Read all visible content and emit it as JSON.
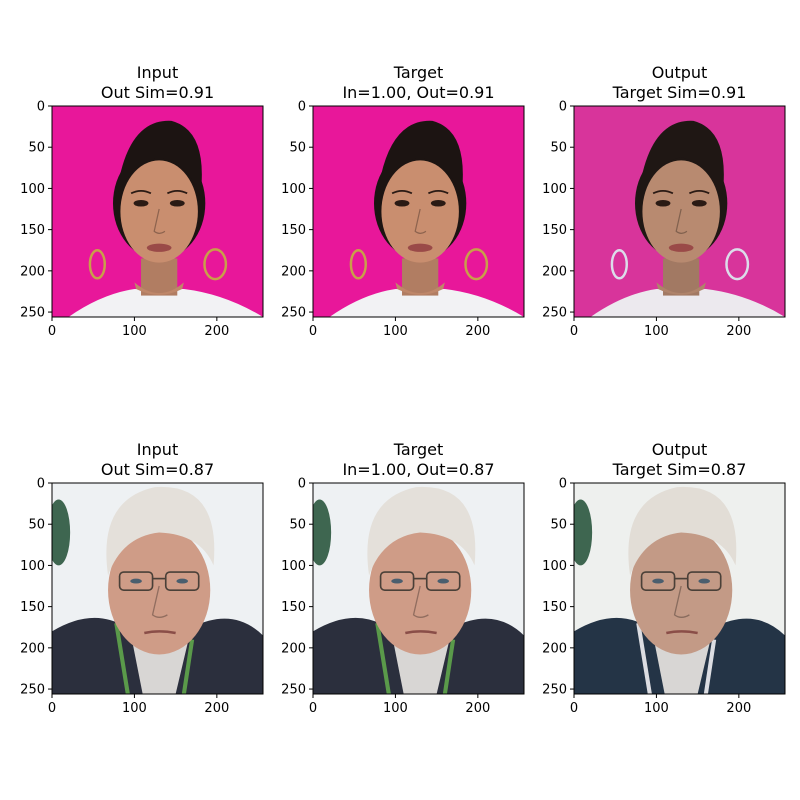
{
  "chart_data": [
    {
      "type": "image",
      "title_line1": "Input",
      "title_line2": "Out Sim=0.91",
      "xlim": [
        0,
        256
      ],
      "ylim": [
        256,
        0
      ],
      "xticks": [
        0,
        100,
        200
      ],
      "yticks": [
        0,
        50,
        100,
        150,
        200,
        250
      ],
      "image": {
        "subject": "woman-short-dark-hair",
        "background": "#e8179a",
        "skin": "#c98e6f",
        "hair": "#1c1412",
        "clothing": "#f2f2f4",
        "accent": "#c8a049"
      }
    },
    {
      "type": "image",
      "title_line1": "Target",
      "title_line2": "In=1.00, Out=0.91",
      "xlim": [
        0,
        256
      ],
      "ylim": [
        256,
        0
      ],
      "xticks": [
        0,
        100,
        200
      ],
      "yticks": [
        0,
        50,
        100,
        150,
        200,
        250
      ],
      "image": {
        "subject": "woman-short-dark-hair",
        "background": "#e8179a",
        "skin": "#c98e6f",
        "hair": "#1c1412",
        "clothing": "#f2f2f4",
        "accent": "#c8a049"
      }
    },
    {
      "type": "image",
      "title_line1": "Output",
      "title_line2": "Target Sim=0.91",
      "xlim": [
        0,
        256
      ],
      "ylim": [
        256,
        0
      ],
      "xticks": [
        0,
        100,
        200
      ],
      "yticks": [
        0,
        50,
        100,
        150,
        200,
        250
      ],
      "image": {
        "subject": "woman-short-dark-hair",
        "background": "#d8349b",
        "skin": "#b88a70",
        "hair": "#1f1714",
        "clothing": "#ece9ee",
        "accent": "#dcdcea"
      }
    },
    {
      "type": "image",
      "title_line1": "Input",
      "title_line2": "Out Sim=0.87",
      "xlim": [
        0,
        256
      ],
      "ylim": [
        256,
        0
      ],
      "xticks": [
        0,
        100,
        200
      ],
      "yticks": [
        0,
        50,
        100,
        150,
        200,
        250
      ],
      "image": {
        "subject": "older-man-white-hair-glasses",
        "background": "#eef1f3",
        "skin": "#cf9c87",
        "hair": "#e4e0da",
        "clothing": "#2b2f3d",
        "accent": "#5a9a4a"
      }
    },
    {
      "type": "image",
      "title_line1": "Target",
      "title_line2": "In=1.00, Out=0.87",
      "xlim": [
        0,
        256
      ],
      "ylim": [
        256,
        0
      ],
      "xticks": [
        0,
        100,
        200
      ],
      "yticks": [
        0,
        50,
        100,
        150,
        200,
        250
      ],
      "image": {
        "subject": "older-man-white-hair-glasses",
        "background": "#eef1f3",
        "skin": "#cf9c87",
        "hair": "#e4e0da",
        "clothing": "#2b2f3d",
        "accent": "#5a9a4a"
      }
    },
    {
      "type": "image",
      "title_line1": "Output",
      "title_line2": "Target Sim=0.87",
      "xlim": [
        0,
        256
      ],
      "ylim": [
        256,
        0
      ],
      "xticks": [
        0,
        100,
        200
      ],
      "yticks": [
        0,
        50,
        100,
        150,
        200,
        250
      ],
      "image": {
        "subject": "older-man-white-hair-glasses",
        "background": "#eef0ee",
        "skin": "#c39a86",
        "hair": "#e2ddd6",
        "clothing": "#243446",
        "accent": "#dcdde2"
      }
    }
  ]
}
